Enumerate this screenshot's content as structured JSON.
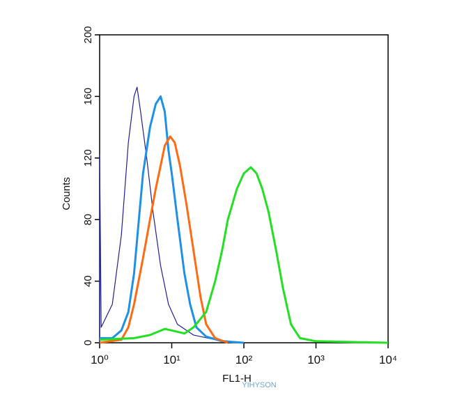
{
  "chart_data": {
    "type": "line",
    "ylabel": "Counts",
    "xlabel": "FL1-H",
    "watermark": "YIHYSON",
    "xscale": "log",
    "xlim": [
      1,
      10000
    ],
    "xticks": [
      {
        "value": 1,
        "label": "10⁰"
      },
      {
        "value": 10,
        "label": "10¹"
      },
      {
        "value": 100,
        "label": "10²"
      },
      {
        "value": 1000,
        "label": "10³"
      },
      {
        "value": 10000,
        "label": "10⁴"
      }
    ],
    "ylim": [
      0,
      200
    ],
    "yticks": [
      0,
      40,
      80,
      120,
      160,
      200
    ],
    "series": [
      {
        "color": "#1f1f9a",
        "width": 1.2,
        "x": [
          1,
          1,
          1.05,
          1.5,
          2,
          2.5,
          3,
          3.3,
          3.7,
          4.5,
          5.5,
          7,
          9,
          12,
          20,
          40,
          100
        ],
        "values": [
          0,
          122,
          10,
          25,
          70,
          130,
          160,
          166,
          150,
          120,
          85,
          50,
          25,
          12,
          5,
          2,
          0
        ]
      },
      {
        "color": "#1e90e6",
        "width": 3,
        "x": [
          1,
          1.5,
          2,
          2.5,
          3,
          3.5,
          4,
          5,
          6,
          7,
          8,
          9,
          10,
          12,
          15,
          18,
          22,
          30,
          50,
          100
        ],
        "values": [
          3,
          3,
          8,
          20,
          45,
          80,
          110,
          140,
          155,
          160,
          150,
          125,
          110,
          80,
          45,
          25,
          10,
          4,
          1,
          0
        ]
      },
      {
        "color": "#ff6a13",
        "width": 3,
        "x": [
          1,
          2,
          2.5,
          3,
          4,
          5,
          6,
          7,
          8,
          9.5,
          11,
          13,
          16,
          20,
          25,
          30,
          40,
          60
        ],
        "values": [
          0,
          2,
          10,
          25,
          55,
          80,
          100,
          115,
          128,
          134,
          130,
          115,
          90,
          60,
          30,
          12,
          3,
          0
        ]
      },
      {
        "color": "#22e022",
        "width": 3,
        "x": [
          1,
          3,
          5,
          8,
          10,
          15,
          20,
          30,
          40,
          50,
          60,
          80,
          100,
          125,
          150,
          180,
          220,
          280,
          350,
          450,
          600,
          1000,
          10000
        ],
        "values": [
          2,
          3,
          5,
          9,
          8,
          6,
          10,
          20,
          40,
          60,
          80,
          100,
          110,
          114,
          110,
          100,
          85,
          60,
          35,
          12,
          3,
          1,
          0
        ]
      }
    ]
  }
}
